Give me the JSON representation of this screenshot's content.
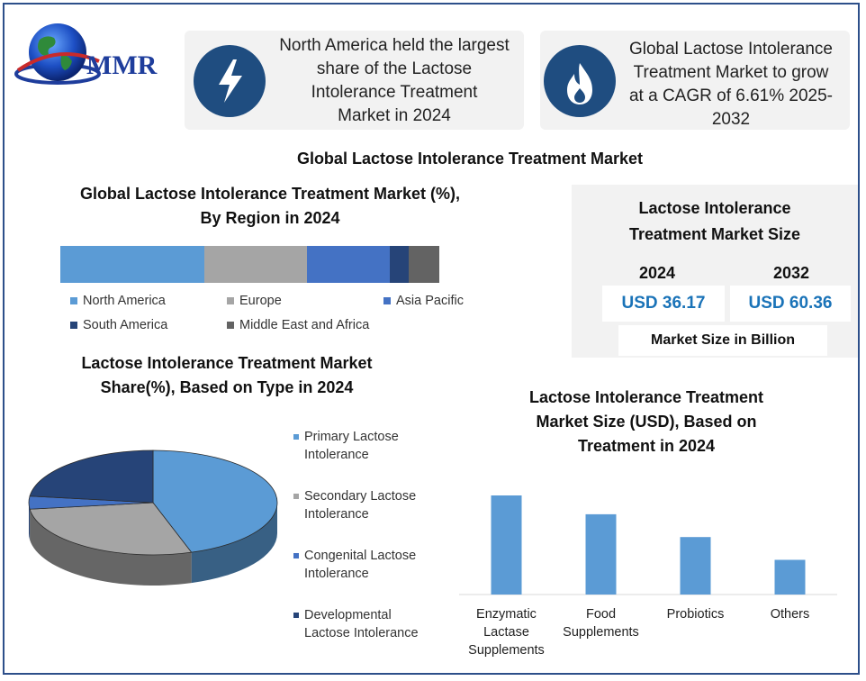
{
  "logo": {
    "text": "MMR",
    "icon": "globe-icon"
  },
  "cards": [
    {
      "icon": "lightning-icon",
      "text": [
        "North America held the largest",
        "share of the Lactose",
        "Intolerance Treatment",
        "Market in 2024"
      ]
    },
    {
      "icon": "flame-icon",
      "text": [
        "Global Lactose Intolerance",
        "Treatment Market to grow",
        "at a CAGR of 6.61% 2025-",
        "2032"
      ]
    }
  ],
  "main_title": "Global Lactose Intolerance Treatment Market",
  "colors": {
    "navy": "#1f4d80",
    "blue": "#5b9bd5",
    "gray": "#a5a5a5",
    "royal": "#4472c4",
    "dark": "#264478",
    "charcoal": "#636363"
  },
  "size_box": {
    "title_lines": [
      "Lactose Intolerance",
      "Treatment Market Size"
    ],
    "years": [
      "2024",
      "2032"
    ],
    "values": [
      "USD 36.17",
      "USD 60.36"
    ],
    "footer": "Market Size in Billion"
  },
  "chart_data": [
    {
      "type": "bar",
      "stacked": true,
      "orientation": "horizontal",
      "title_lines": [
        "Global Lactose Intolerance Treatment Market (%),",
        "By Region in 2024"
      ],
      "series": [
        {
          "name": "North America",
          "value": 38,
          "color": "#5b9bd5"
        },
        {
          "name": "Europe",
          "value": 27,
          "color": "#a5a5a5"
        },
        {
          "name": "Asia Pacific",
          "value": 22,
          "color": "#4472c4"
        },
        {
          "name": "South America",
          "value": 5,
          "color": "#264478"
        },
        {
          "name": "Middle East and Africa",
          "value": 8,
          "color": "#636363"
        }
      ],
      "legend_position": "bottom"
    },
    {
      "type": "pie",
      "title_lines": [
        "Lactose Intolerance Treatment Market",
        "Share(%), Based on Type in 2024"
      ],
      "slices": [
        {
          "name_lines": [
            "Primary Lactose",
            "Intolerance"
          ],
          "value": 45,
          "color": "#5b9bd5"
        },
        {
          "name_lines": [
            "Secondary Lactose",
            "Intolerance"
          ],
          "value": 28,
          "color": "#a5a5a5"
        },
        {
          "name_lines": [
            "Congenital Lactose",
            "Intolerance"
          ],
          "value": 4,
          "color": "#4472c4"
        },
        {
          "name_lines": [
            "Developmental",
            "Lactose Intolerance"
          ],
          "value": 23,
          "color": "#264478"
        }
      ],
      "legend_position": "right"
    },
    {
      "type": "bar",
      "title_lines": [
        "Lactose Intolerance Treatment",
        "Market Size (USD), Based on",
        "Treatment in 2024"
      ],
      "categories": [
        [
          "Enzymatic",
          "Lactase",
          "Supplements"
        ],
        [
          "Food",
          "Supplements"
        ],
        [
          "Probiotics"
        ],
        [
          "Others"
        ]
      ],
      "values": [
        100,
        81,
        58,
        35
      ],
      "ylim": [
        0,
        100
      ],
      "color": "#5b9bd5",
      "grid": false
    }
  ]
}
